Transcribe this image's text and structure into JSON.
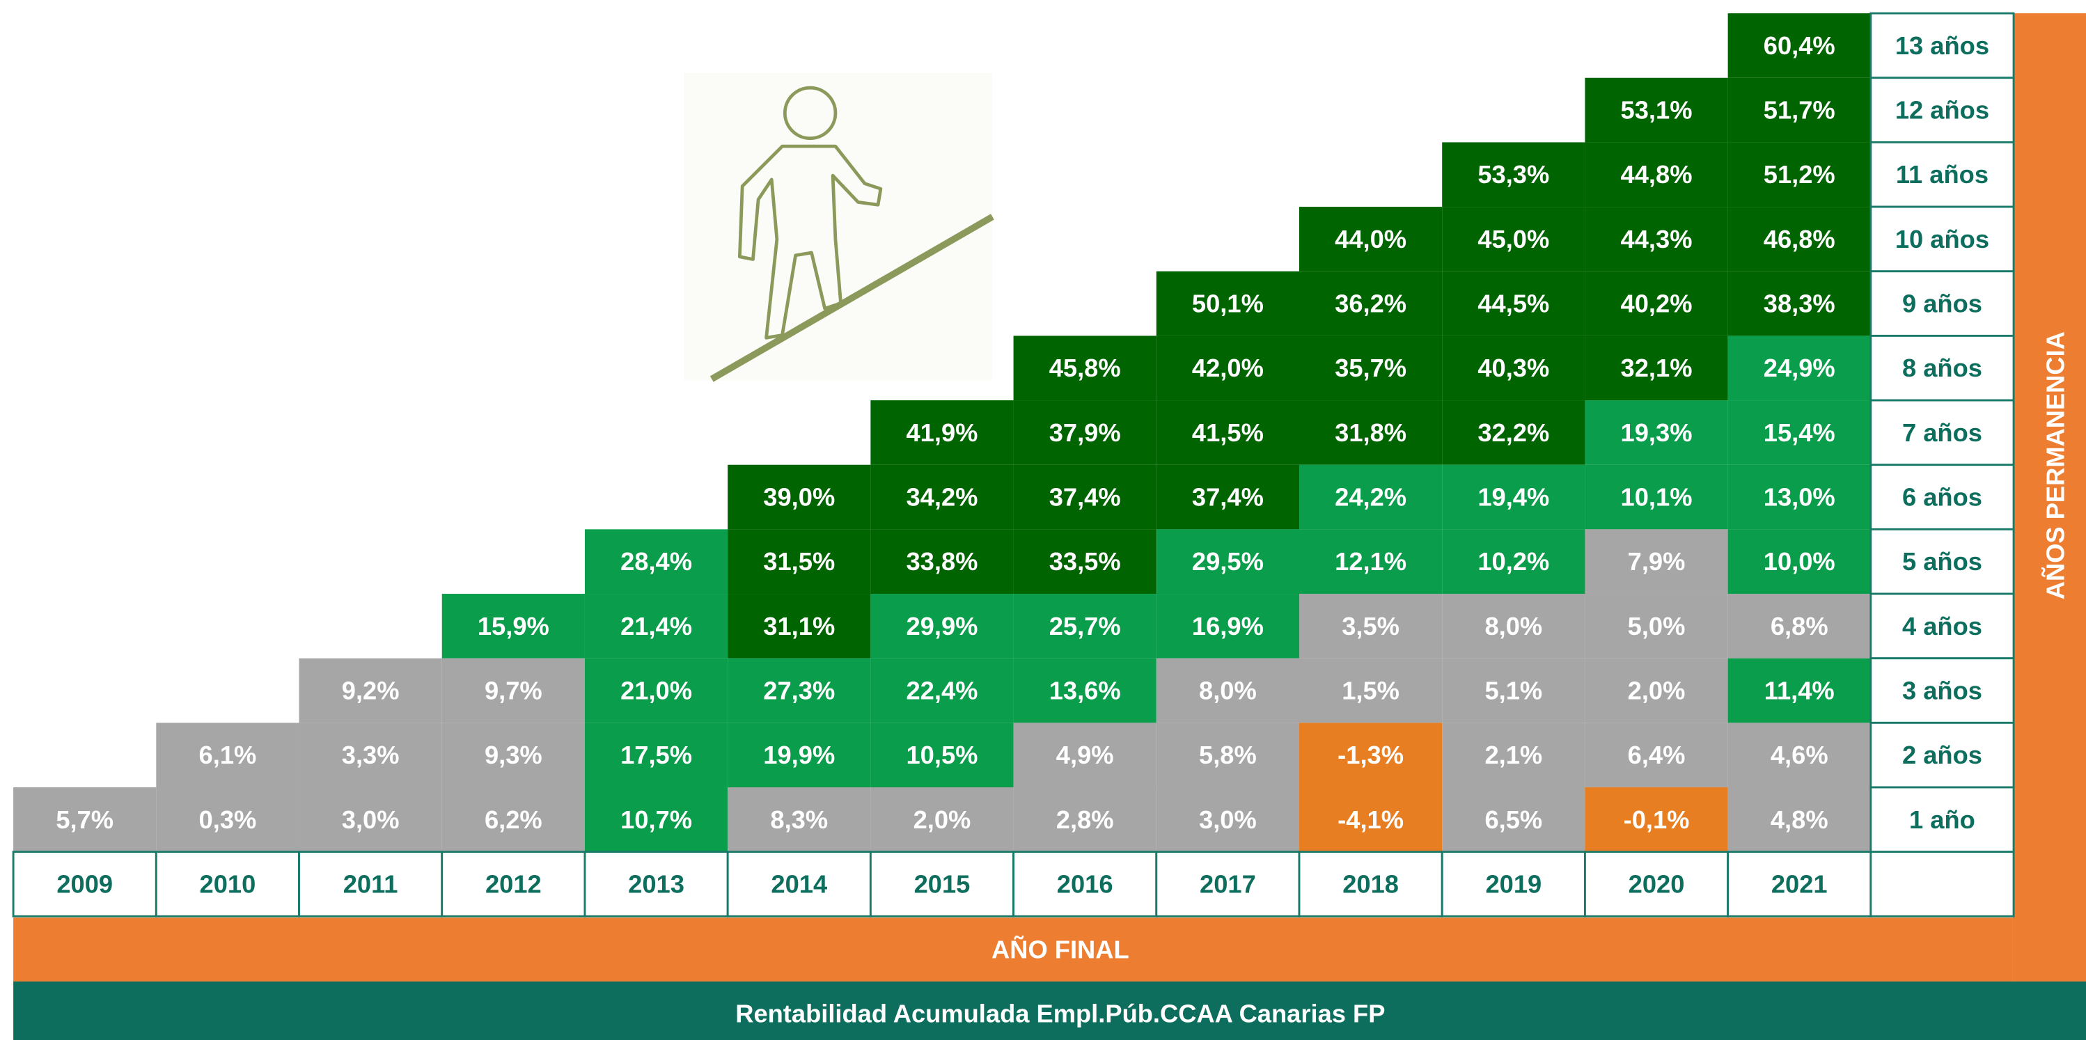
{
  "title": "Rentabilidad Acumulada Empl.Púb.CCAA Canarias FP",
  "x_axis_label": "AÑO FINAL",
  "y_axis_label": "AÑOS PERMANENCIA",
  "table": {
    "columns": [
      "2009",
      "2010",
      "2011",
      "2012",
      "2013",
      "2014",
      "2015",
      "2016",
      "2017",
      "2018",
      "2019",
      "2020",
      "2021"
    ],
    "rows": [
      {
        "label": "13 años",
        "cells": [
          {
            "text": "60,4%",
            "color": "#006400"
          }
        ]
      },
      {
        "label": "12 años",
        "cells": [
          {
            "text": "53,1%",
            "color": "#006400"
          },
          {
            "text": "51,7%",
            "color": "#006400"
          }
        ]
      },
      {
        "label": "11 años",
        "cells": [
          {
            "text": "53,3%",
            "color": "#006400"
          },
          {
            "text": "44,8%",
            "color": "#006400"
          },
          {
            "text": "51,2%",
            "color": "#006400"
          }
        ]
      },
      {
        "label": "10 años",
        "cells": [
          {
            "text": "44,0%",
            "color": "#006400"
          },
          {
            "text": "45,0%",
            "color": "#006400"
          },
          {
            "text": "44,3%",
            "color": "#006400"
          },
          {
            "text": "46,8%",
            "color": "#006400"
          }
        ]
      },
      {
        "label": "9 años",
        "cells": [
          {
            "text": "50,1%",
            "color": "#006400"
          },
          {
            "text": "36,2%",
            "color": "#006400"
          },
          {
            "text": "44,5%",
            "color": "#006400"
          },
          {
            "text": "40,2%",
            "color": "#006400"
          },
          {
            "text": "38,3%",
            "color": "#006400"
          }
        ]
      },
      {
        "label": "8 años",
        "cells": [
          {
            "text": "45,8%",
            "color": "#006400"
          },
          {
            "text": "42,0%",
            "color": "#006400"
          },
          {
            "text": "35,7%",
            "color": "#006400"
          },
          {
            "text": "40,3%",
            "color": "#006400"
          },
          {
            "text": "32,1%",
            "color": "#006400"
          },
          {
            "text": "24,9%",
            "color": "#0a9d4b"
          }
        ]
      },
      {
        "label": "7 años",
        "cells": [
          {
            "text": "41,9%",
            "color": "#006400"
          },
          {
            "text": "37,9%",
            "color": "#006400"
          },
          {
            "text": "41,5%",
            "color": "#006400"
          },
          {
            "text": "31,8%",
            "color": "#006400"
          },
          {
            "text": "32,2%",
            "color": "#006400"
          },
          {
            "text": "19,3%",
            "color": "#0a9d4b"
          },
          {
            "text": "15,4%",
            "color": "#0a9d4b"
          }
        ]
      },
      {
        "label": "6 años",
        "cells": [
          {
            "text": "39,0%",
            "color": "#006400"
          },
          {
            "text": "34,2%",
            "color": "#006400"
          },
          {
            "text": "37,4%",
            "color": "#006400"
          },
          {
            "text": "37,4%",
            "color": "#006400"
          },
          {
            "text": "24,2%",
            "color": "#0a9d4b"
          },
          {
            "text": "19,4%",
            "color": "#0a9d4b"
          },
          {
            "text": "10,1%",
            "color": "#0a9d4b"
          },
          {
            "text": "13,0%",
            "color": "#0a9d4b"
          }
        ]
      },
      {
        "label": "5 años",
        "cells": [
          {
            "text": "28,4%",
            "color": "#0a9d4b"
          },
          {
            "text": "31,5%",
            "color": "#006400"
          },
          {
            "text": "33,8%",
            "color": "#006400"
          },
          {
            "text": "33,5%",
            "color": "#006400"
          },
          {
            "text": "29,5%",
            "color": "#0a9d4b"
          },
          {
            "text": "12,1%",
            "color": "#0a9d4b"
          },
          {
            "text": "10,2%",
            "color": "#0a9d4b"
          },
          {
            "text": "7,9%",
            "color": "#a6a6a6"
          },
          {
            "text": "10,0%",
            "color": "#0a9d4b"
          }
        ]
      },
      {
        "label": "4 años",
        "cells": [
          {
            "text": "15,9%",
            "color": "#0a9d4b"
          },
          {
            "text": "21,4%",
            "color": "#0a9d4b"
          },
          {
            "text": "31,1%",
            "color": "#006400"
          },
          {
            "text": "29,9%",
            "color": "#0a9d4b"
          },
          {
            "text": "25,7%",
            "color": "#0a9d4b"
          },
          {
            "text": "16,9%",
            "color": "#0a9d4b"
          },
          {
            "text": "3,5%",
            "color": "#a6a6a6"
          },
          {
            "text": "8,0%",
            "color": "#a6a6a6"
          },
          {
            "text": "5,0%",
            "color": "#a6a6a6"
          },
          {
            "text": "6,8%",
            "color": "#a6a6a6"
          }
        ]
      },
      {
        "label": "3 años",
        "cells": [
          {
            "text": "9,2%",
            "color": "#a6a6a6"
          },
          {
            "text": "9,7%",
            "color": "#a6a6a6"
          },
          {
            "text": "21,0%",
            "color": "#0a9d4b"
          },
          {
            "text": "27,3%",
            "color": "#0a9d4b"
          },
          {
            "text": "22,4%",
            "color": "#0a9d4b"
          },
          {
            "text": "13,6%",
            "color": "#0a9d4b"
          },
          {
            "text": "8,0%",
            "color": "#a6a6a6"
          },
          {
            "text": "1,5%",
            "color": "#a6a6a6"
          },
          {
            "text": "5,1%",
            "color": "#a6a6a6"
          },
          {
            "text": "2,0%",
            "color": "#a6a6a6"
          },
          {
            "text": "11,4%",
            "color": "#0a9d4b"
          }
        ]
      },
      {
        "label": "2 años",
        "cells": [
          {
            "text": "6,1%",
            "color": "#a6a6a6"
          },
          {
            "text": "3,3%",
            "color": "#a6a6a6"
          },
          {
            "text": "9,3%",
            "color": "#a6a6a6"
          },
          {
            "text": "17,5%",
            "color": "#0a9d4b"
          },
          {
            "text": "19,9%",
            "color": "#0a9d4b"
          },
          {
            "text": "10,5%",
            "color": "#0a9d4b"
          },
          {
            "text": "4,9%",
            "color": "#a6a6a6"
          },
          {
            "text": "5,8%",
            "color": "#a6a6a6"
          },
          {
            "text": "-1,3%",
            "color": "#e87e22"
          },
          {
            "text": "2,1%",
            "color": "#a6a6a6"
          },
          {
            "text": "6,4%",
            "color": "#a6a6a6"
          },
          {
            "text": "4,6%",
            "color": "#a6a6a6"
          }
        ]
      },
      {
        "label": "1 año",
        "cells": [
          {
            "text": "5,7%",
            "color": "#a6a6a6"
          },
          {
            "text": "0,3%",
            "color": "#a6a6a6"
          },
          {
            "text": "3,0%",
            "color": "#a6a6a6"
          },
          {
            "text": "6,2%",
            "color": "#a6a6a6"
          },
          {
            "text": "10,7%",
            "color": "#0a9d4b"
          },
          {
            "text": "8,3%",
            "color": "#a6a6a6"
          },
          {
            "text": "2,0%",
            "color": "#a6a6a6"
          },
          {
            "text": "2,8%",
            "color": "#a6a6a6"
          },
          {
            "text": "3,0%",
            "color": "#a6a6a6"
          },
          {
            "text": "-4,1%",
            "color": "#e87e22"
          },
          {
            "text": "6,5%",
            "color": "#a6a6a6"
          },
          {
            "text": "-0,1%",
            "color": "#e87e22"
          },
          {
            "text": "4,8%",
            "color": "#a6a6a6"
          }
        ]
      }
    ]
  }
}
